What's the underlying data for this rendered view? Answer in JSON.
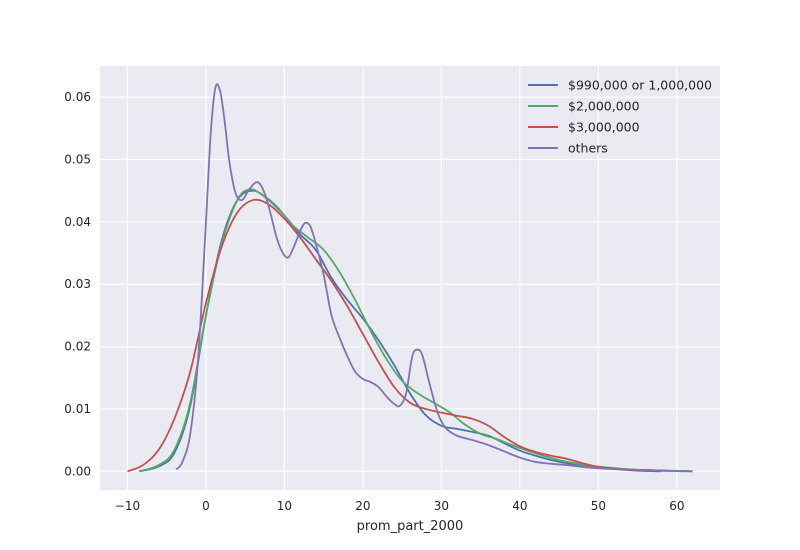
{
  "chart_data": {
    "type": "line",
    "title": "",
    "xlabel": "prom_part_2000",
    "ylabel": "",
    "xlim": [
      -13.5,
      65.5
    ],
    "ylim": [
      -0.003,
      0.065
    ],
    "xticks": [
      -10,
      0,
      10,
      20,
      30,
      40,
      50,
      60
    ],
    "xtick_labels": [
      "−10",
      "0",
      "10",
      "20",
      "30",
      "40",
      "50",
      "60"
    ],
    "yticks": [
      0.0,
      0.01,
      0.02,
      0.03,
      0.04,
      0.05,
      0.06
    ],
    "ytick_labels": [
      "0.00",
      "0.01",
      "0.02",
      "0.03",
      "0.04",
      "0.05",
      "0.06"
    ],
    "grid": true,
    "legend_position": "top-right",
    "series": [
      {
        "name": "$990,000 or 1,000,000",
        "color": "#4c72b0",
        "points": [
          [
            -8.5,
            0.0
          ],
          [
            -6,
            0.0008
          ],
          [
            -4,
            0.003
          ],
          [
            -2,
            0.0105
          ],
          [
            0,
            0.025
          ],
          [
            2,
            0.037
          ],
          [
            4,
            0.0435
          ],
          [
            6,
            0.045
          ],
          [
            8,
            0.0435
          ],
          [
            10,
            0.041
          ],
          [
            12,
            0.038
          ],
          [
            14,
            0.0355
          ],
          [
            16,
            0.031
          ],
          [
            18,
            0.0275
          ],
          [
            20,
            0.0245
          ],
          [
            22,
            0.021
          ],
          [
            24,
            0.017
          ],
          [
            26,
            0.0125
          ],
          [
            28,
            0.009
          ],
          [
            30,
            0.0073
          ],
          [
            32,
            0.0068
          ],
          [
            34,
            0.0063
          ],
          [
            36,
            0.0057
          ],
          [
            38,
            0.0045
          ],
          [
            40,
            0.0033
          ],
          [
            42,
            0.0025
          ],
          [
            44,
            0.0018
          ],
          [
            46,
            0.0013
          ],
          [
            48,
            0.001
          ],
          [
            50,
            0.0007
          ],
          [
            52,
            0.0005
          ],
          [
            54,
            0.0003
          ],
          [
            56,
            0.0002
          ],
          [
            58,
            0.0001
          ],
          [
            60,
            5e-05
          ],
          [
            62,
            0.0
          ]
        ]
      },
      {
        "name": "$2,000,000",
        "color": "#55a868",
        "points": [
          [
            -8.5,
            0.0
          ],
          [
            -6,
            0.001
          ],
          [
            -4,
            0.0035
          ],
          [
            -2,
            0.011
          ],
          [
            0,
            0.025
          ],
          [
            2,
            0.0365
          ],
          [
            4,
            0.0435
          ],
          [
            5.5,
            0.0452
          ],
          [
            7,
            0.0445
          ],
          [
            9,
            0.0425
          ],
          [
            11,
            0.0395
          ],
          [
            13,
            0.0375
          ],
          [
            15,
            0.0355
          ],
          [
            17,
            0.032
          ],
          [
            19,
            0.0275
          ],
          [
            21,
            0.0225
          ],
          [
            23,
            0.018
          ],
          [
            25,
            0.0145
          ],
          [
            27,
            0.0125
          ],
          [
            29,
            0.011
          ],
          [
            31,
            0.0095
          ],
          [
            33,
            0.0075
          ],
          [
            35,
            0.006
          ],
          [
            37,
            0.0052
          ],
          [
            39,
            0.0042
          ],
          [
            41,
            0.0033
          ],
          [
            43,
            0.0025
          ],
          [
            45,
            0.0018
          ],
          [
            47,
            0.0013
          ],
          [
            49,
            0.0009
          ],
          [
            52,
            0.0005
          ],
          [
            55,
            0.0002
          ],
          [
            58,
            0.0001
          ],
          [
            61,
            0.0
          ]
        ]
      },
      {
        "name": "$3,000,000",
        "color": "#c44e52",
        "points": [
          [
            -10,
            0.0
          ],
          [
            -8,
            0.001
          ],
          [
            -6,
            0.0035
          ],
          [
            -4,
            0.0085
          ],
          [
            -2,
            0.016
          ],
          [
            0,
            0.027
          ],
          [
            2,
            0.036
          ],
          [
            4,
            0.0415
          ],
          [
            6,
            0.0435
          ],
          [
            8,
            0.0428
          ],
          [
            10,
            0.0405
          ],
          [
            12,
            0.0375
          ],
          [
            14,
            0.034
          ],
          [
            16,
            0.0305
          ],
          [
            18,
            0.0265
          ],
          [
            20,
            0.022
          ],
          [
            22,
            0.0175
          ],
          [
            24,
            0.0135
          ],
          [
            26,
            0.011
          ],
          [
            28,
            0.01
          ],
          [
            30,
            0.0094
          ],
          [
            32,
            0.0089
          ],
          [
            34,
            0.0084
          ],
          [
            36,
            0.0073
          ],
          [
            38,
            0.0055
          ],
          [
            40,
            0.004
          ],
          [
            42,
            0.0031
          ],
          [
            44,
            0.0025
          ],
          [
            46,
            0.002
          ],
          [
            48,
            0.0013
          ],
          [
            50,
            0.0007
          ],
          [
            52,
            0.0004
          ],
          [
            55,
            0.0001
          ],
          [
            58,
            0.0
          ]
        ]
      },
      {
        "name": "others",
        "color": "#8172b2",
        "points": [
          [
            -3.8,
            0.0003
          ],
          [
            -3,
            0.0015
          ],
          [
            -2,
            0.006
          ],
          [
            -1,
            0.018
          ],
          [
            0,
            0.04
          ],
          [
            0.6,
            0.054
          ],
          [
            1.2,
            0.0615
          ],
          [
            1.8,
            0.061
          ],
          [
            2.4,
            0.056
          ],
          [
            3,
            0.0495
          ],
          [
            3.8,
            0.0445
          ],
          [
            4.6,
            0.0435
          ],
          [
            5.4,
            0.045
          ],
          [
            6.2,
            0.0462
          ],
          [
            6.8,
            0.0462
          ],
          [
            7.5,
            0.0445
          ],
          [
            8.2,
            0.0415
          ],
          [
            9,
            0.0375
          ],
          [
            9.8,
            0.035
          ],
          [
            10.5,
            0.0343
          ],
          [
            11.2,
            0.036
          ],
          [
            12,
            0.0385
          ],
          [
            12.6,
            0.0398
          ],
          [
            13.3,
            0.0393
          ],
          [
            14,
            0.0365
          ],
          [
            15,
            0.0315
          ],
          [
            16,
            0.025
          ],
          [
            17,
            0.0215
          ],
          [
            18,
            0.0185
          ],
          [
            19,
            0.016
          ],
          [
            20,
            0.0148
          ],
          [
            21,
            0.0143
          ],
          [
            22,
            0.0135
          ],
          [
            23,
            0.012
          ],
          [
            24,
            0.0108
          ],
          [
            24.7,
            0.0105
          ],
          [
            25.5,
            0.0125
          ],
          [
            26.3,
            0.0185
          ],
          [
            27,
            0.0195
          ],
          [
            27.6,
            0.0185
          ],
          [
            28.5,
            0.014
          ],
          [
            29.5,
            0.0095
          ],
          [
            30.5,
            0.007
          ],
          [
            32,
            0.0057
          ],
          [
            34,
            0.005
          ],
          [
            36,
            0.0042
          ],
          [
            38,
            0.0032
          ],
          [
            40,
            0.0022
          ],
          [
            42,
            0.0015
          ],
          [
            44,
            0.0012
          ],
          [
            46,
            0.001
          ],
          [
            48,
            0.0007
          ],
          [
            50,
            0.0005
          ],
          [
            53,
            0.0003
          ],
          [
            56,
            0.0002
          ],
          [
            59,
            0.0001
          ],
          [
            62,
            0.0
          ]
        ]
      }
    ]
  }
}
